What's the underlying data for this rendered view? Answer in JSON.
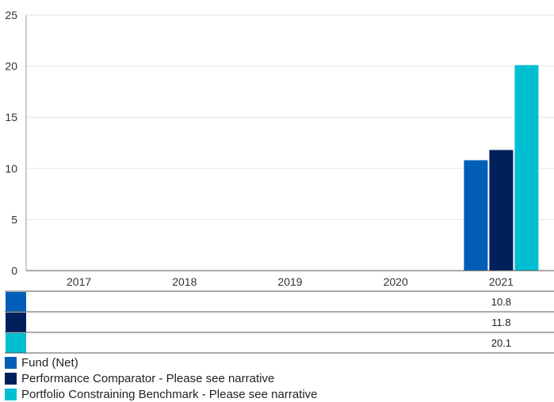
{
  "chart_data": {
    "type": "bar",
    "categories": [
      "2017",
      "2018",
      "2019",
      "2020",
      "2021"
    ],
    "series": [
      {
        "name": "Fund (Net)",
        "color": "#005EB8",
        "values": [
          null,
          null,
          null,
          null,
          10.8
        ]
      },
      {
        "name": "Performance Comparator - Please see narrative",
        "color": "#00205B",
        "values": [
          null,
          null,
          null,
          null,
          11.8
        ]
      },
      {
        "name": "Portfolio Constraining Benchmark - Please see narrative",
        "color": "#00BFD3",
        "values": [
          null,
          null,
          null,
          null,
          20.1
        ]
      }
    ],
    "table_values": [
      [
        "",
        "",
        "",
        "",
        "10.8"
      ],
      [
        "",
        "",
        "",
        "",
        "11.8"
      ],
      [
        "",
        "",
        "",
        "",
        "20.1"
      ]
    ],
    "ylim": [
      0,
      25
    ],
    "yticks": [
      "0",
      "5",
      "10",
      "15",
      "20",
      "25"
    ],
    "grid": true,
    "legend_position": "bottom-left",
    "title": "",
    "xlabel": "",
    "ylabel": ""
  }
}
